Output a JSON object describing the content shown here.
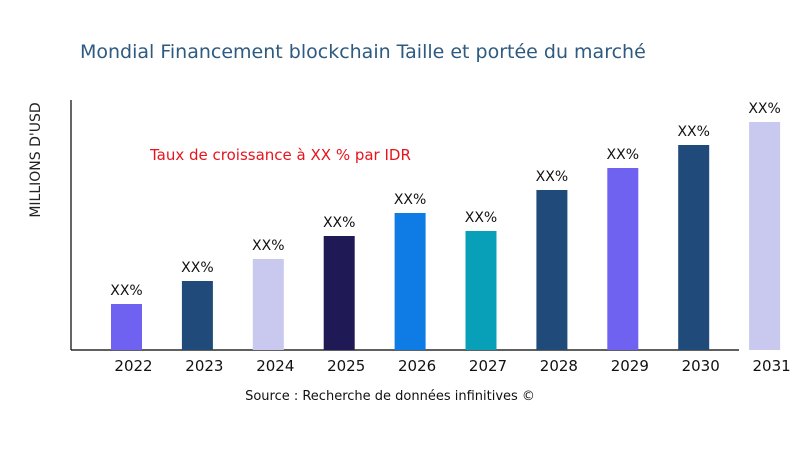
{
  "chart_data": {
    "type": "bar",
    "title": "Mondial Financement blockchain Taille et portée du marché",
    "ylabel": "MILLIONS D'USD",
    "xlabel": "",
    "annotation": "Taux de croissance à XX % par IDR",
    "source": "Source : Recherche de données infinitives ©",
    "categories": [
      "2022",
      "2023",
      "2024",
      "2025",
      "2026",
      "2027",
      "2028",
      "2029",
      "2030",
      "2031"
    ],
    "values": [
      46,
      69,
      91,
      114,
      137,
      119,
      160,
      182,
      205,
      228
    ],
    "data_labels": [
      "XX%",
      "XX%",
      "XX%",
      "XX%",
      "XX%",
      "XX%",
      "XX%",
      "XX%",
      "XX%",
      "XX%"
    ],
    "colors": [
      "#7062f0",
      "#1f4a7a",
      "#c9c9ef",
      "#1f1a56",
      "#0f7be4",
      "#08a0b8",
      "#1f4a7a",
      "#7062f0",
      "#1f4a7a",
      "#c9c9ef"
    ],
    "ylim": [
      0,
      250
    ],
    "y_ticks_shown": false,
    "grid": false,
    "legend": "none",
    "title_color": "#2e5a80",
    "annotation_color": "#e8141c"
  }
}
